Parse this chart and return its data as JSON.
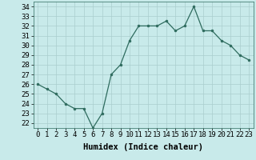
{
  "x": [
    0,
    1,
    2,
    3,
    4,
    5,
    6,
    7,
    8,
    9,
    10,
    11,
    12,
    13,
    14,
    15,
    16,
    17,
    18,
    19,
    20,
    21,
    22,
    23
  ],
  "y": [
    26.0,
    25.5,
    25.0,
    24.0,
    23.5,
    23.5,
    21.5,
    23.0,
    27.0,
    28.0,
    30.5,
    32.0,
    32.0,
    32.0,
    32.5,
    31.5,
    32.0,
    34.0,
    31.5,
    31.5,
    30.5,
    30.0,
    29.0,
    28.5
  ],
  "xlabel": "Humidex (Indice chaleur)",
  "xlim": [
    -0.5,
    23.5
  ],
  "ylim": [
    21.5,
    34.5
  ],
  "yticks": [
    22,
    23,
    24,
    25,
    26,
    27,
    28,
    29,
    30,
    31,
    32,
    33,
    34
  ],
  "xticks": [
    0,
    1,
    2,
    3,
    4,
    5,
    6,
    7,
    8,
    9,
    10,
    11,
    12,
    13,
    14,
    15,
    16,
    17,
    18,
    19,
    20,
    21,
    22,
    23
  ],
  "line_color": "#2e6b5e",
  "marker_color": "#2e6b5e",
  "bg_color": "#c8eaea",
  "grid_color": "#aacece",
  "tick_fontsize": 6.5,
  "xlabel_fontsize": 7.5
}
